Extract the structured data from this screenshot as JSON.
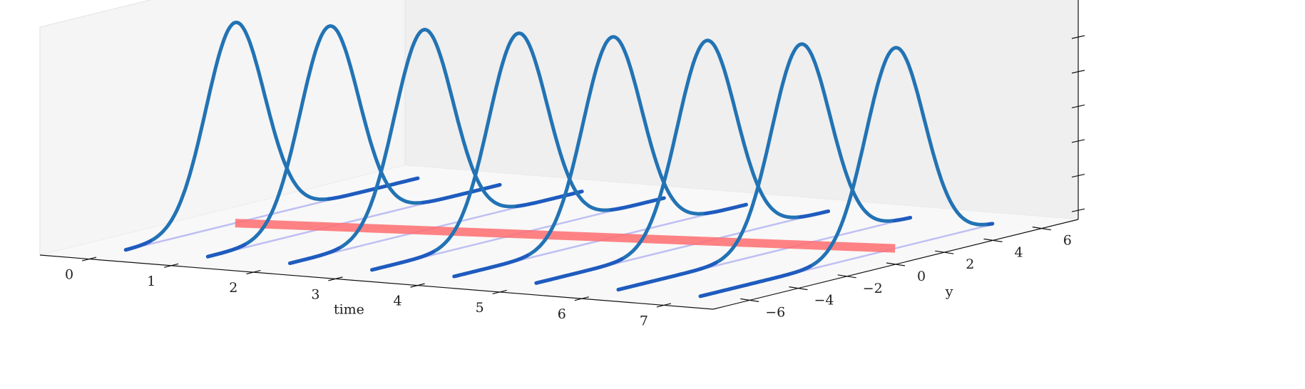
{
  "chart_data": {
    "type": "line",
    "projection": "3d",
    "xlabel": "time",
    "ylabel": "y",
    "zlabel": "",
    "x_ticks": [
      0,
      1,
      2,
      3,
      4,
      5,
      6,
      7
    ],
    "y_ticks": [
      -6,
      -4,
      -2,
      0,
      2,
      4,
      6
    ],
    "z_tick_count": 6,
    "xlim": [
      -0.6,
      7.6
    ],
    "ylim": [
      -7.5,
      7.5
    ],
    "zlim": [
      0,
      1
    ],
    "curve_y_range": [
      -6,
      6
    ],
    "gaussian_means": [
      -1.5,
      -1.0,
      -0.5,
      0.0,
      0.5,
      1.0,
      1.5,
      2.0
    ],
    "gaussian_sigma": 1.2,
    "gaussian_peak": 0.88,
    "series": [
      {
        "x": 0,
        "mean": -1.5
      },
      {
        "x": 1,
        "mean": -1.0
      },
      {
        "x": 2,
        "mean": -0.5
      },
      {
        "x": 3,
        "mean": 0.0
      },
      {
        "x": 4,
        "mean": 0.5
      },
      {
        "x": 5,
        "mean": 1.0
      },
      {
        "x": 6,
        "mean": 1.5
      },
      {
        "x": 7,
        "mean": 2.0
      }
    ],
    "baseline_lines": {
      "y_range": [
        -6,
        6
      ],
      "z": 0
    },
    "mean_path": {
      "x_range": [
        0,
        7
      ],
      "y_range": [
        -1.5,
        2.0
      ],
      "z": 0
    },
    "grid": false,
    "colors": {
      "curve": "#2273b4",
      "curve_base": "#1f5bbf",
      "baseline": "#b8b8f2",
      "mean_path": "#ff6d70",
      "pane_back": "#efefef",
      "pane_left": "#f5f5f5",
      "pane_floor": "#f8f8f8",
      "axis": "#111111"
    }
  }
}
